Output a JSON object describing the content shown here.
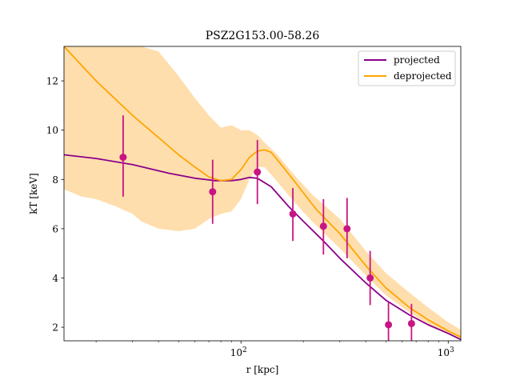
{
  "chart_data": {
    "type": "line",
    "title": "PSZ2G153.00-58.26",
    "xlabel": "r [kpc]",
    "ylabel": "kT [keV]",
    "xscale": "log",
    "xlim": [
      14,
      1150
    ],
    "ylim": [
      1.45,
      13.4
    ],
    "grid": false,
    "legend_position": "top-right",
    "x_ticks": [
      {
        "value": 100,
        "base": "10",
        "exp": "2"
      },
      {
        "value": 1000,
        "base": "10",
        "exp": "3"
      }
    ],
    "y_ticks": [
      2,
      4,
      6,
      8,
      10,
      12
    ],
    "colors": {
      "projected": "#8b008b",
      "deprojected": "#ffa500",
      "band": "#ffdead",
      "points": "#c71585"
    },
    "series": [
      {
        "name": "projected",
        "x": [
          14,
          20,
          30,
          45,
          60,
          75,
          90,
          100,
          110,
          120,
          140,
          170,
          200,
          250,
          300,
          400,
          500,
          650,
          800,
          1000,
          1150
        ],
        "y": [
          9.0,
          8.85,
          8.6,
          8.25,
          8.05,
          7.95,
          7.95,
          8.0,
          8.08,
          8.05,
          7.7,
          6.9,
          6.3,
          5.5,
          4.8,
          3.8,
          3.1,
          2.5,
          2.1,
          1.75,
          1.5
        ]
      },
      {
        "name": "deprojected",
        "x": [
          14,
          20,
          30,
          40,
          50,
          60,
          70,
          80,
          90,
          100,
          110,
          120,
          130,
          140,
          160,
          190,
          230,
          300,
          400,
          500,
          650,
          800,
          1000,
          1150
        ],
        "y": [
          13.4,
          12.0,
          10.6,
          9.7,
          9.0,
          8.5,
          8.1,
          7.95,
          8.0,
          8.4,
          8.9,
          9.15,
          9.2,
          9.1,
          8.5,
          7.7,
          6.8,
          5.8,
          4.5,
          3.6,
          2.8,
          2.3,
          1.85,
          1.6
        ]
      }
    ],
    "band": {
      "x": [
        14,
        17,
        20,
        25,
        30,
        33,
        40,
        50,
        60,
        70,
        80,
        90,
        100,
        110,
        120,
        130,
        150,
        180,
        220,
        300,
        400,
        500,
        650,
        800,
        1000,
        1150
      ],
      "upper": [
        13.4,
        13.4,
        13.4,
        13.4,
        13.4,
        13.4,
        13.2,
        12.2,
        11.3,
        10.6,
        10.1,
        10.2,
        10.0,
        10.0,
        9.8,
        9.5,
        9.0,
        8.2,
        7.4,
        6.4,
        5.1,
        4.2,
        3.4,
        2.8,
        2.2,
        1.9
      ],
      "lower": [
        7.6,
        7.3,
        7.2,
        6.9,
        6.6,
        6.3,
        6.0,
        5.9,
        6.0,
        6.4,
        6.6,
        6.7,
        7.2,
        8.0,
        8.5,
        8.5,
        7.9,
        7.1,
        6.3,
        5.2,
        4.1,
        3.3,
        2.6,
        2.1,
        1.75,
        1.5
      ]
    },
    "points": [
      {
        "x": 27,
        "y": 8.9,
        "yerr_low": 7.3,
        "yerr_high": 10.6
      },
      {
        "x": 73,
        "y": 7.5,
        "yerr_low": 6.2,
        "yerr_high": 8.8
      },
      {
        "x": 120,
        "y": 8.3,
        "yerr_low": 7.0,
        "yerr_high": 9.6
      },
      {
        "x": 178,
        "y": 6.6,
        "yerr_low": 5.5,
        "yerr_high": 7.65
      },
      {
        "x": 250,
        "y": 6.1,
        "yerr_low": 4.95,
        "yerr_high": 7.2
      },
      {
        "x": 325,
        "y": 6.0,
        "yerr_low": 4.8,
        "yerr_high": 7.25
      },
      {
        "x": 420,
        "y": 4.0,
        "yerr_low": 2.9,
        "yerr_high": 5.1
      },
      {
        "x": 515,
        "y": 2.1,
        "yerr_low": 1.45,
        "yerr_high": 3.0
      },
      {
        "x": 665,
        "y": 2.15,
        "yerr_low": 1.45,
        "yerr_high": 2.95
      }
    ]
  }
}
